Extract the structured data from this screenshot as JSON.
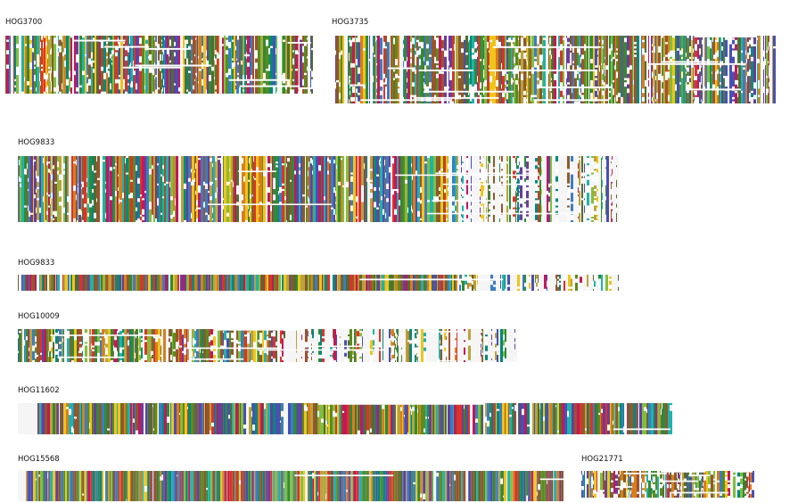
{
  "panels": [
    {
      "id": "p1",
      "title": "HOG3700"
    },
    {
      "id": "p2",
      "title": "HOG3735"
    },
    {
      "id": "p3",
      "title": "HOG9833"
    },
    {
      "id": "p4",
      "title": "HOG9833"
    },
    {
      "id": "p5",
      "title": "HOG10009"
    },
    {
      "id": "p6",
      "title": "HOG11602"
    },
    {
      "id": "p7",
      "title": "HOG15568"
    },
    {
      "id": "p8",
      "title": "HOG21771"
    }
  ],
  "palette": [
    "#2e8b3a",
    "#4a4fb5",
    "#e0312b",
    "#d97d1f",
    "#8b5a2b",
    "#6a3d9a",
    "#20b2aa",
    "#b8a43a",
    "#f0c419",
    "#5a8c1f",
    "#3b7dc4",
    "#a0522d",
    "#7fbf3f",
    "#c2185b",
    "#00897b",
    "#556b2f"
  ],
  "gap_color": "#ffffff",
  "background_color": "#f5f5f5"
}
